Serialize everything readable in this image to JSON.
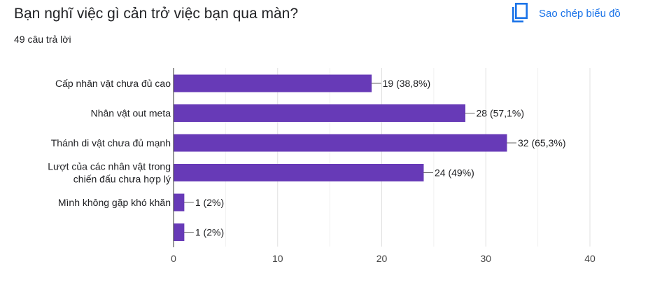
{
  "question": {
    "title": "Bạn nghĩ việc gì cản trở việc bạn qua màn?",
    "responses": "49 câu trả lời"
  },
  "toolbar": {
    "copy_label": "Sao chép biểu đồ",
    "copy_icon": "copy-icon"
  },
  "colors": {
    "bar": "#673ab7",
    "link": "#1a73e8",
    "grid": "#e0e0e0",
    "text": "#202124"
  },
  "chart_data": {
    "type": "bar",
    "orientation": "horizontal",
    "categories": [
      [
        "Cấp nhân vật chưa đủ cao"
      ],
      [
        "Nhân vật out meta"
      ],
      [
        "Thánh di vật chưa đủ mạnh"
      ],
      [
        "Lượt của các nhân vật trong",
        "chiến đấu chưa hợp lý"
      ],
      [
        "Mình không gặp khó khăn"
      ],
      [
        ""
      ]
    ],
    "values": [
      19,
      28,
      32,
      24,
      1,
      1
    ],
    "data_labels": [
      "19 (38,8%)",
      "28 (57,1%)",
      "32 (65,3%)",
      "24 (49%)",
      "1 (2%)",
      "1 (2%)"
    ],
    "xlim": [
      0,
      40
    ],
    "xticks": [
      0,
      10,
      20,
      30,
      40
    ],
    "grid": true
  }
}
